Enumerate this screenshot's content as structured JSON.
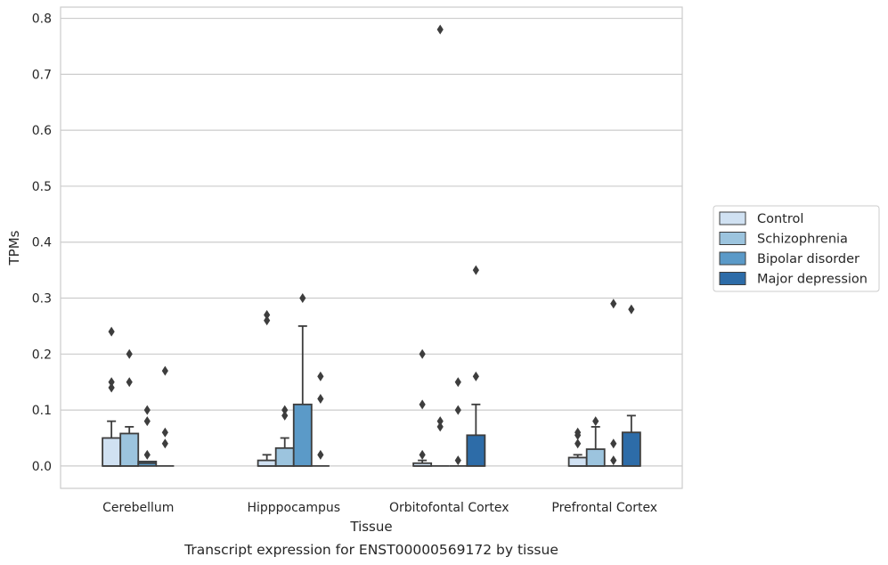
{
  "chart_data": {
    "type": "box",
    "title": "",
    "caption": "Transcript expression for ENST00000569172 by tissue",
    "xlabel": "Tissue",
    "ylabel": "TPMs",
    "ylim": [
      -0.04,
      0.82
    ],
    "yticks": [
      "0.0",
      "0.1",
      "0.2",
      "0.3",
      "0.4",
      "0.5",
      "0.6",
      "0.7",
      "0.8"
    ],
    "grid": true,
    "legend_position": "right",
    "categories": [
      "Cerebellum",
      "Hipppocampus",
      "Orbitofontal Cortex",
      "Prefrontal Cortex"
    ],
    "series": [
      {
        "name": "Control",
        "color": "#d0e1f2",
        "boxes": [
          {
            "q1": 0.0,
            "median": 0.0,
            "q3": 0.05,
            "whisker_low": 0.0,
            "whisker_high": 0.08,
            "outliers": [
              0.14,
              0.15,
              0.24
            ]
          },
          {
            "q1": 0.0,
            "median": 0.0,
            "q3": 0.01,
            "whisker_low": 0.0,
            "whisker_high": 0.02,
            "outliers": [
              0.26,
              0.27
            ]
          },
          {
            "q1": 0.0,
            "median": 0.0,
            "q3": 0.005,
            "whisker_low": 0.0,
            "whisker_high": 0.01,
            "outliers": [
              0.02,
              0.11,
              0.2
            ]
          },
          {
            "q1": 0.0,
            "median": 0.0,
            "q3": 0.015,
            "whisker_low": 0.0,
            "whisker_high": 0.02,
            "outliers": [
              0.04,
              0.055,
              0.06
            ]
          }
        ]
      },
      {
        "name": "Schizophrenia",
        "color": "#9cc4de",
        "boxes": [
          {
            "q1": 0.0,
            "median": 0.0,
            "q3": 0.058,
            "whisker_low": 0.0,
            "whisker_high": 0.07,
            "outliers": [
              0.15,
              0.2
            ]
          },
          {
            "q1": 0.0,
            "median": 0.0,
            "q3": 0.032,
            "whisker_low": 0.0,
            "whisker_high": 0.05,
            "outliers": [
              0.09,
              0.1
            ]
          },
          {
            "q1": 0.0,
            "median": 0.0,
            "q3": 0.0,
            "whisker_low": 0.0,
            "whisker_high": 0.0,
            "outliers": [
              0.07,
              0.08,
              0.78
            ]
          },
          {
            "q1": 0.0,
            "median": 0.0,
            "q3": 0.03,
            "whisker_low": 0.0,
            "whisker_high": 0.07,
            "outliers": [
              0.08
            ]
          }
        ]
      },
      {
        "name": "Bipolar disorder",
        "color": "#5b9ac8",
        "boxes": [
          {
            "q1": 0.0,
            "median": 0.005,
            "q3": 0.008,
            "whisker_low": 0.0,
            "whisker_high": 0.008,
            "outliers": [
              0.02,
              0.08,
              0.1
            ]
          },
          {
            "q1": 0.0,
            "median": 0.0,
            "q3": 0.11,
            "whisker_low": 0.0,
            "whisker_high": 0.25,
            "outliers": [
              0.3
            ]
          },
          {
            "q1": 0.0,
            "median": 0.0,
            "q3": 0.0,
            "whisker_low": 0.0,
            "whisker_high": 0.0,
            "outliers": [
              0.01,
              0.1,
              0.15
            ]
          },
          {
            "q1": 0.0,
            "median": 0.0,
            "q3": 0.0,
            "whisker_low": 0.0,
            "whisker_high": 0.0,
            "outliers": [
              0.01,
              0.04,
              0.29
            ]
          }
        ]
      },
      {
        "name": "Major depression",
        "color": "#2d6ca8",
        "boxes": [
          {
            "q1": 0.0,
            "median": 0.0,
            "q3": 0.0,
            "whisker_low": 0.0,
            "whisker_high": 0.0,
            "outliers": [
              0.04,
              0.06,
              0.17
            ]
          },
          {
            "q1": 0.0,
            "median": 0.0,
            "q3": 0.0,
            "whisker_low": 0.0,
            "whisker_high": 0.0,
            "outliers": [
              0.02,
              0.12,
              0.16
            ]
          },
          {
            "q1": 0.0,
            "median": 0.0,
            "q3": 0.055,
            "whisker_low": 0.0,
            "whisker_high": 0.11,
            "outliers": [
              0.16,
              0.35
            ]
          },
          {
            "q1": 0.0,
            "median": 0.0,
            "q3": 0.06,
            "whisker_low": 0.0,
            "whisker_high": 0.09,
            "outliers": [
              0.28
            ]
          }
        ]
      }
    ]
  }
}
